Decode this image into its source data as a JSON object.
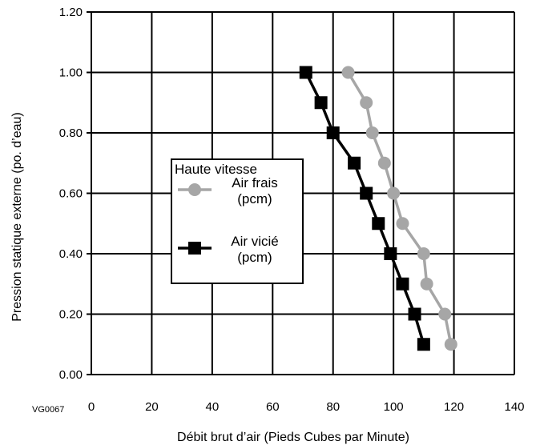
{
  "chart_data": {
    "type": "line",
    "xlabel": "Débit brut d’air (Pieds Cubes par Minute)",
    "ylabel": "Pression statique externe (po. d’eau)",
    "xlim": [
      0,
      140
    ],
    "ylim": [
      0,
      1.2
    ],
    "x_ticks": [
      "0",
      "20",
      "40",
      "60",
      "80",
      "100",
      "120",
      "140"
    ],
    "y_ticks": [
      "0.00",
      "0.20",
      "0.40",
      "0.60",
      "0.80",
      "1.00",
      "1.20"
    ],
    "grid": true,
    "legend": {
      "title": "Haute vitesse",
      "placement": "center-left",
      "entries": [
        "Air frais\n(pcm)",
        "Air vicié\n(pcm)"
      ]
    },
    "series": [
      {
        "name": "Air frais (pcm)",
        "marker": "circle",
        "color": "#a6a6a6",
        "x": [
          85,
          91,
          93,
          97,
          100,
          103,
          110,
          111,
          117,
          119
        ],
        "y": [
          1.0,
          0.9,
          0.8,
          0.7,
          0.6,
          0.5,
          0.4,
          0.3,
          0.2,
          0.1
        ]
      },
      {
        "name": "Air vicié (pcm)",
        "marker": "square",
        "color": "#000000",
        "x": [
          71,
          76,
          80,
          87,
          91,
          95,
          99,
          103,
          107,
          110
        ],
        "y": [
          1.0,
          0.9,
          0.8,
          0.7,
          0.6,
          0.5,
          0.4,
          0.3,
          0.2,
          0.1
        ]
      }
    ]
  },
  "figure_code": "VG0067"
}
